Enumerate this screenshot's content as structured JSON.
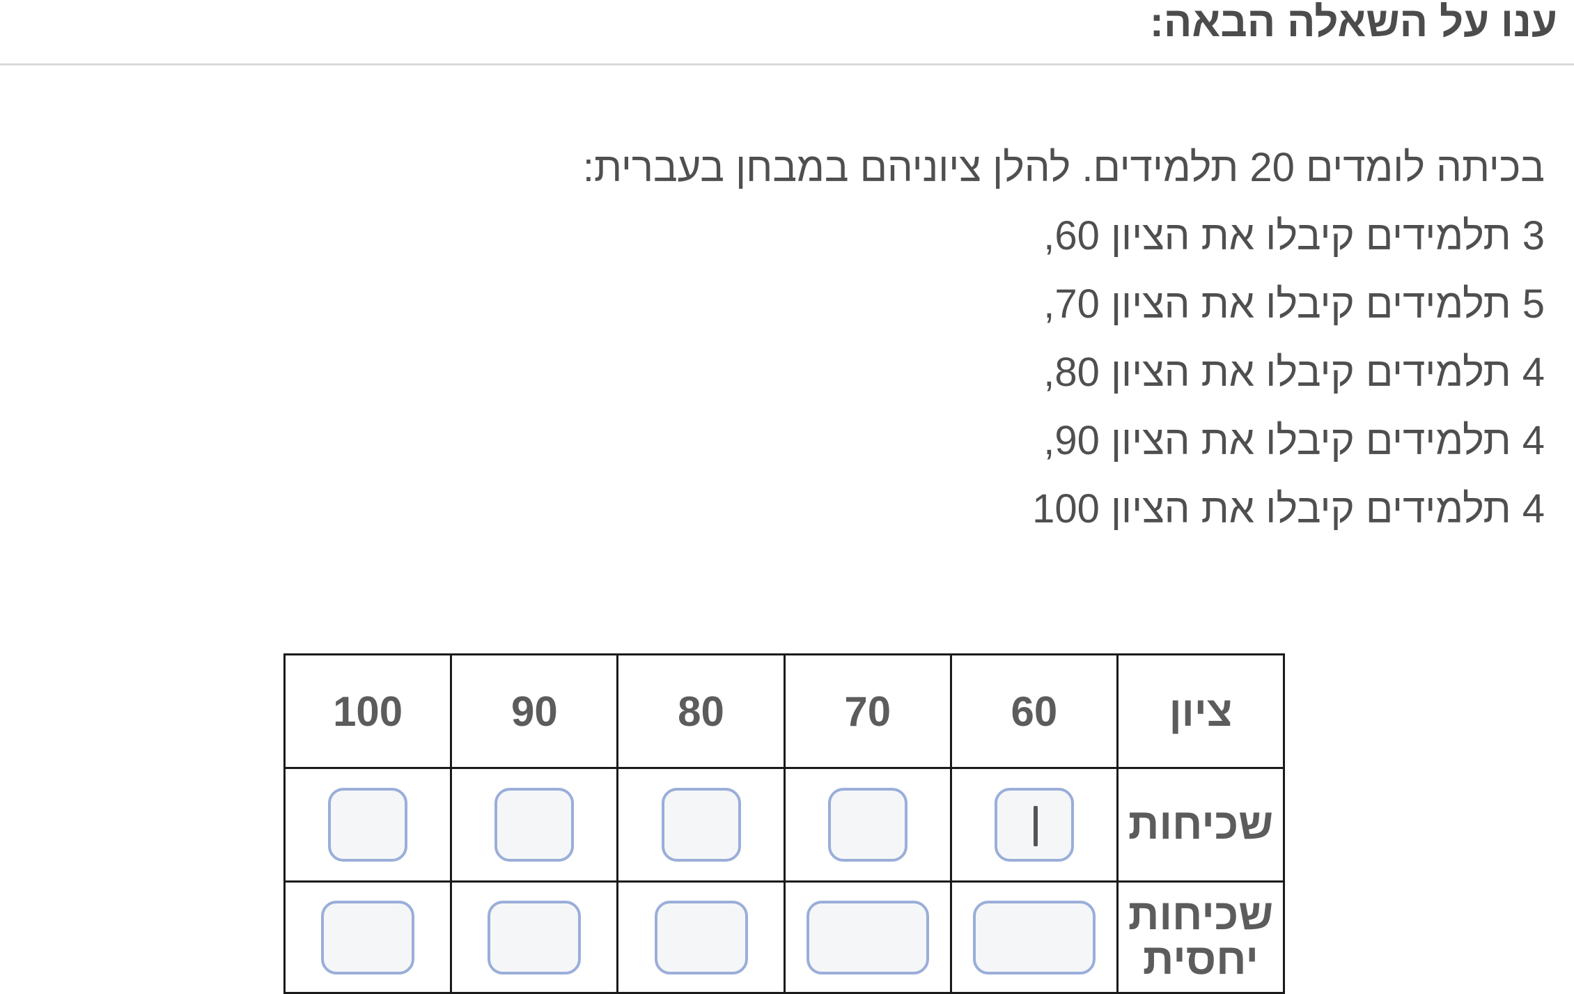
{
  "header": {
    "title": "ענו על השאלה הבאה:"
  },
  "question": {
    "intro": "בכיתה לומדים 20 תלמידים. להלן ציוניהם במבחן בעברית:",
    "lines": [
      "3 תלמידים קיבלו את הציון 60,",
      "5 תלמידים קיבלו את הציון 70,",
      "4 תלמידים קיבלו את הציון 80,",
      "4 תלמידים קיבלו את הציון 90,",
      "4 תלמידים קיבלו את הציון 100"
    ]
  },
  "table": {
    "row_labels": {
      "grade": "ציון",
      "frequency": "שכיחות",
      "relative_frequency": "שכיחות יחסית"
    },
    "grades": [
      "60",
      "70",
      "80",
      "90",
      "100"
    ],
    "frequency_inputs": [
      "",
      "",
      "",
      "",
      ""
    ],
    "relative_frequency_inputs": [
      "",
      "",
      "",
      "",
      ""
    ]
  }
}
